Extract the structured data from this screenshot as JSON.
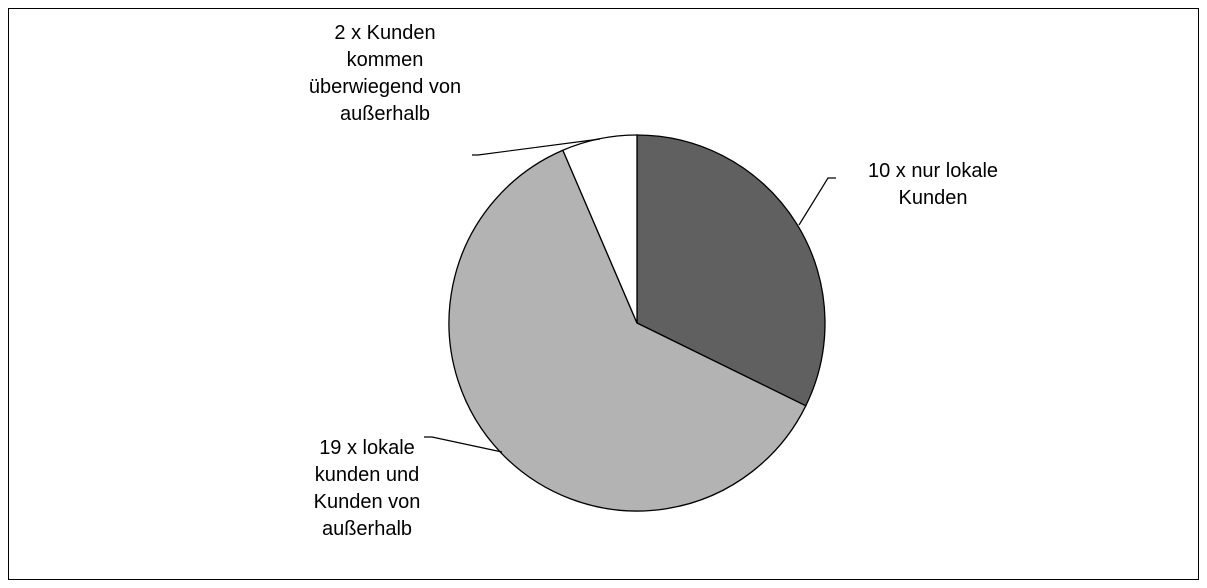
{
  "chart_data": {
    "type": "pie",
    "categories": [
      "10 x nur lokale Kunden",
      "19 x lokale kunden und Kunden von außerhalb",
      "2 x Kunden kommen überwiegend von außerhalb"
    ],
    "values": [
      10,
      19,
      2
    ],
    "colors": [
      "#606060",
      "#b3b3b3",
      "#ffffff"
    ]
  }
}
